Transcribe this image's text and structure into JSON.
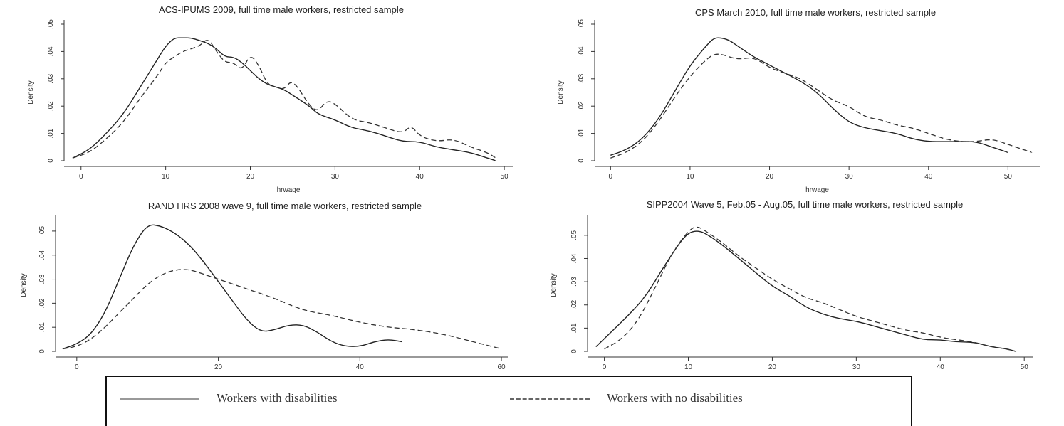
{
  "chart_data": [
    {
      "type": "line",
      "title": "ACS-IPUMS 2009, full time male workers, restricted sample",
      "xlabel": "hrwage",
      "ylabel": "Density",
      "xlim": [
        -2,
        51
      ],
      "ylim": [
        0,
        0.05
      ],
      "xticks": [
        0,
        10,
        20,
        30,
        40,
        50
      ],
      "yticks": [
        0,
        0.01,
        0.02,
        0.03,
        0.04,
        0.05
      ],
      "xticklabels": [
        "0",
        "10",
        "20",
        "30",
        "40",
        "50"
      ],
      "yticklabels": [
        "0",
        ".01",
        ".02",
        ".03",
        ".04",
        ".05"
      ],
      "series": [
        {
          "name": "Workers with disabilities",
          "style": "solid",
          "x": [
            -1,
            1,
            3,
            5,
            7,
            9,
            10,
            11,
            12,
            13,
            14,
            15,
            16,
            17,
            18,
            19,
            20,
            21,
            22,
            23,
            24,
            25,
            27,
            28,
            30,
            32,
            34,
            36,
            38,
            40,
            42,
            44,
            46,
            48,
            49
          ],
          "y": [
            0.001,
            0.004,
            0.01,
            0.017,
            0.027,
            0.037,
            0.042,
            0.045,
            0.045,
            0.045,
            0.044,
            0.043,
            0.041,
            0.038,
            0.038,
            0.036,
            0.033,
            0.03,
            0.028,
            0.027,
            0.026,
            0.024,
            0.02,
            0.017,
            0.015,
            0.012,
            0.011,
            0.009,
            0.007,
            0.007,
            0.005,
            0.004,
            0.003,
            0.001,
            0.0
          ]
        },
        {
          "name": "Workers with no disabilities",
          "style": "dashed",
          "x": [
            -1,
            1,
            3,
            5,
            7,
            9,
            10,
            11,
            12,
            13,
            14,
            15,
            16,
            17,
            18,
            19,
            20,
            21,
            22,
            23,
            24,
            25,
            27,
            28,
            29,
            30,
            32,
            34,
            36,
            38,
            39,
            40,
            42,
            44,
            46,
            48,
            49
          ],
          "y": [
            0.001,
            0.003,
            0.008,
            0.014,
            0.023,
            0.031,
            0.036,
            0.038,
            0.04,
            0.041,
            0.042,
            0.045,
            0.04,
            0.036,
            0.036,
            0.033,
            0.039,
            0.035,
            0.028,
            0.027,
            0.026,
            0.03,
            0.02,
            0.018,
            0.022,
            0.021,
            0.015,
            0.014,
            0.012,
            0.01,
            0.013,
            0.009,
            0.007,
            0.008,
            0.005,
            0.003,
            0.001
          ]
        }
      ]
    },
    {
      "type": "line",
      "title": "CPS March 2010, full time male workers, restricted sample",
      "xlabel": "hrwage",
      "ylabel": "Density",
      "xlim": [
        -2,
        54
      ],
      "ylim": [
        0,
        0.05
      ],
      "xticks": [
        0,
        10,
        20,
        30,
        40,
        50
      ],
      "yticks": [
        0,
        0.01,
        0.02,
        0.03,
        0.04,
        0.05
      ],
      "xticklabels": [
        "0",
        "10",
        "20",
        "30",
        "40",
        "50"
      ],
      "yticklabels": [
        "0",
        ".01",
        ".02",
        ".03",
        ".04",
        ".05"
      ],
      "series": [
        {
          "name": "Workers with disabilities",
          "style": "solid",
          "x": [
            0,
            2,
            4,
            6,
            8,
            10,
            12,
            13,
            14,
            15,
            16,
            18,
            20,
            22,
            24,
            26,
            28,
            30,
            32,
            34,
            36,
            38,
            40,
            42,
            44,
            46,
            48,
            50
          ],
          "y": [
            0.002,
            0.004,
            0.008,
            0.015,
            0.025,
            0.035,
            0.042,
            0.045,
            0.045,
            0.044,
            0.042,
            0.038,
            0.035,
            0.032,
            0.029,
            0.025,
            0.019,
            0.014,
            0.012,
            0.011,
            0.01,
            0.008,
            0.007,
            0.007,
            0.007,
            0.007,
            0.005,
            0.003
          ]
        },
        {
          "name": "Workers with no disabilities",
          "style": "dashed",
          "x": [
            0,
            2,
            4,
            6,
            8,
            10,
            12,
            13,
            14,
            16,
            18,
            20,
            22,
            24,
            26,
            28,
            30,
            32,
            34,
            36,
            38,
            40,
            42,
            44,
            46,
            48,
            50,
            53
          ],
          "y": [
            0.001,
            0.003,
            0.007,
            0.014,
            0.023,
            0.031,
            0.037,
            0.039,
            0.039,
            0.037,
            0.038,
            0.034,
            0.032,
            0.03,
            0.026,
            0.022,
            0.02,
            0.016,
            0.015,
            0.013,
            0.012,
            0.01,
            0.008,
            0.007,
            0.007,
            0.008,
            0.006,
            0.003
          ]
        }
      ]
    },
    {
      "type": "line",
      "title": "RAND HRS 2008 wave 9, full time male workers, restricted sample",
      "xlabel": "",
      "ylabel": "Density",
      "xlim": [
        -3,
        61
      ],
      "ylim": [
        0,
        0.055
      ],
      "xticks": [
        0,
        20,
        40,
        60
      ],
      "yticks": [
        0,
        0.01,
        0.02,
        0.03,
        0.04,
        0.05
      ],
      "xticklabels": [
        "0",
        "20",
        "40",
        "60"
      ],
      "yticklabels": [
        "0",
        ".01",
        ".02",
        ".03",
        ".04",
        ".05"
      ],
      "series": [
        {
          "name": "Workers with disabilities",
          "style": "solid",
          "x": [
            -2,
            0,
            2,
            4,
            6,
            8,
            10,
            12,
            14,
            16,
            18,
            20,
            22,
            24,
            26,
            28,
            30,
            32,
            34,
            36,
            38,
            40,
            42,
            44,
            46
          ],
          "y": [
            0.001,
            0.003,
            0.007,
            0.016,
            0.03,
            0.044,
            0.053,
            0.052,
            0.049,
            0.044,
            0.037,
            0.029,
            0.021,
            0.013,
            0.008,
            0.009,
            0.011,
            0.011,
            0.008,
            0.004,
            0.002,
            0.002,
            0.004,
            0.005,
            0.004
          ]
        },
        {
          "name": "Workers with no disabilities",
          "style": "dashed",
          "x": [
            -2,
            0,
            2,
            4,
            6,
            8,
            10,
            12,
            14,
            16,
            18,
            20,
            24,
            28,
            32,
            36,
            40,
            44,
            48,
            52,
            56,
            60
          ],
          "y": [
            0.001,
            0.002,
            0.005,
            0.01,
            0.016,
            0.022,
            0.028,
            0.032,
            0.034,
            0.034,
            0.032,
            0.03,
            0.026,
            0.022,
            0.017,
            0.015,
            0.012,
            0.01,
            0.009,
            0.007,
            0.004,
            0.001
          ]
        }
      ]
    },
    {
      "type": "line",
      "title": "SIPP2004 Wave 5, Feb.05 - Aug.05, full time male workers, restricted sample",
      "xlabel": "",
      "ylabel": "Density",
      "xlim": [
        -2,
        51
      ],
      "ylim": [
        0,
        0.057
      ],
      "xticks": [
        0,
        10,
        20,
        30,
        40,
        50
      ],
      "yticks": [
        0,
        0.01,
        0.02,
        0.03,
        0.04,
        0.05
      ],
      "xticklabels": [
        "0",
        "10",
        "20",
        "30",
        "40",
        "50"
      ],
      "yticklabels": [
        "0",
        ".01",
        ".02",
        ".03",
        ".04",
        ".05"
      ],
      "series": [
        {
          "name": "Workers with disabilities",
          "style": "solid",
          "x": [
            -1,
            1,
            3,
            5,
            7,
            9,
            10,
            11,
            12,
            14,
            16,
            18,
            20,
            22,
            24,
            26,
            28,
            30,
            32,
            34,
            36,
            38,
            40,
            42,
            44,
            46,
            48,
            49
          ],
          "y": [
            0.002,
            0.009,
            0.016,
            0.024,
            0.036,
            0.047,
            0.051,
            0.052,
            0.051,
            0.046,
            0.04,
            0.034,
            0.028,
            0.024,
            0.019,
            0.016,
            0.014,
            0.013,
            0.011,
            0.009,
            0.007,
            0.005,
            0.005,
            0.004,
            0.004,
            0.002,
            0.001,
            0.0
          ]
        },
        {
          "name": "Workers with no disabilities",
          "style": "dashed",
          "x": [
            0,
            2,
            4,
            6,
            8,
            10,
            11,
            12,
            14,
            16,
            18,
            20,
            22,
            24,
            26,
            28,
            30,
            32,
            34,
            36,
            38,
            40,
            42,
            44,
            46,
            48,
            49
          ],
          "y": [
            0.001,
            0.005,
            0.013,
            0.027,
            0.042,
            0.052,
            0.054,
            0.052,
            0.047,
            0.041,
            0.036,
            0.031,
            0.027,
            0.023,
            0.021,
            0.018,
            0.015,
            0.013,
            0.011,
            0.009,
            0.008,
            0.006,
            0.005,
            0.004,
            0.002,
            0.001,
            0.0
          ]
        }
      ]
    }
  ],
  "legend": {
    "items": [
      {
        "label": "Workers with disabilities",
        "style": "solid"
      },
      {
        "label": "Workers with no disabilities",
        "style": "dashed"
      }
    ]
  }
}
